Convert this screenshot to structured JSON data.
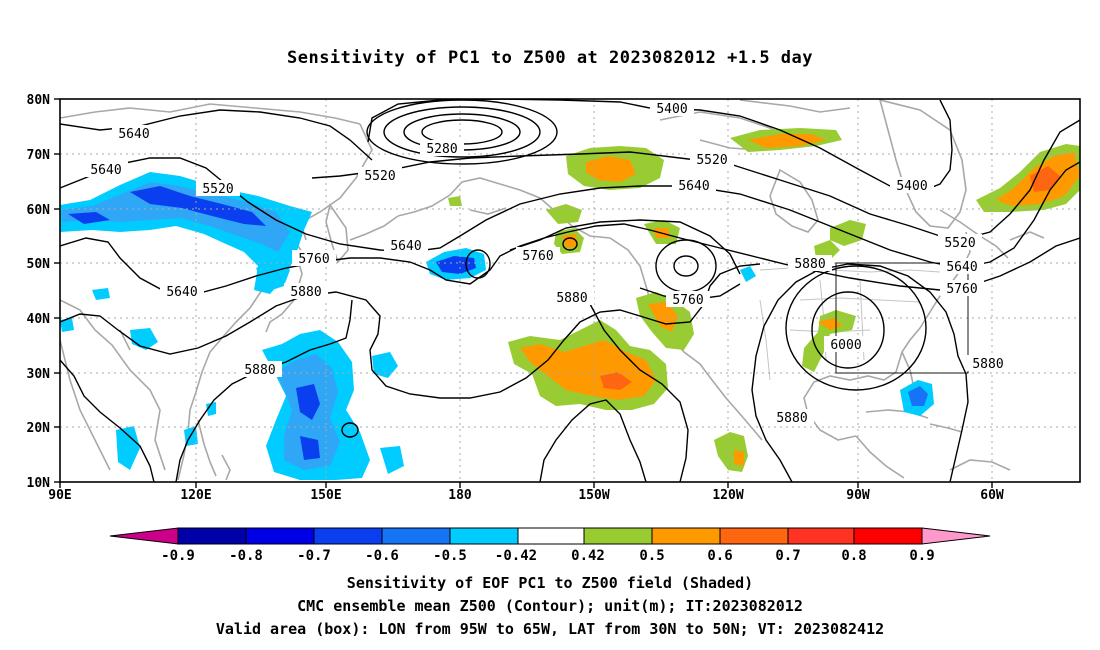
{
  "title": "Sensitivity of PC1 to Z500 at 2023082012 +1.5 day",
  "map": {
    "lat_labels": [
      "80N",
      "70N",
      "60N",
      "50N",
      "40N",
      "30N",
      "20N",
      "10N"
    ],
    "lon_labels": [
      "90E",
      "120E",
      "150E",
      "180",
      "150W",
      "120W",
      "90W",
      "60W"
    ],
    "extent": {
      "lon_min": "90E",
      "lon_max": "50W",
      "lat_min": "10N",
      "lat_max": "80N"
    },
    "contour_labels": [
      {
        "text": "5640",
        "id": "c1"
      },
      {
        "text": "5640",
        "id": "c2"
      },
      {
        "text": "5520",
        "id": "c3"
      },
      {
        "text": "5640",
        "id": "c4"
      },
      {
        "text": "5760",
        "id": "c5"
      },
      {
        "text": "5880",
        "id": "c6"
      },
      {
        "text": "5880",
        "id": "c7"
      },
      {
        "text": "5280",
        "id": "c8"
      },
      {
        "text": "5520",
        "id": "c9"
      },
      {
        "text": "5640",
        "id": "c10"
      },
      {
        "text": "5760",
        "id": "c11"
      },
      {
        "text": "5400",
        "id": "c12"
      },
      {
        "text": "5520",
        "id": "c13"
      },
      {
        "text": "5640",
        "id": "c14"
      },
      {
        "text": "5880",
        "id": "c15"
      },
      {
        "text": "5760",
        "id": "c16"
      },
      {
        "text": "5400",
        "id": "c17"
      },
      {
        "text": "5520",
        "id": "c18"
      },
      {
        "text": "5640",
        "id": "c19"
      },
      {
        "text": "5760",
        "id": "c20"
      },
      {
        "text": "5880",
        "id": "c21"
      },
      {
        "text": "6000",
        "id": "c22"
      },
      {
        "text": "5880",
        "id": "c23"
      },
      {
        "text": "5880",
        "id": "c24"
      }
    ],
    "valid_box": {
      "lon": "95W to 65W",
      "lat": "30N to 50N"
    }
  },
  "colorbar": {
    "labels": [
      "-0.9",
      "-0.8",
      "-0.7",
      "-0.6",
      "-0.5",
      "-0.42",
      "0.42",
      "0.5",
      "0.6",
      "0.7",
      "0.8",
      "0.9"
    ],
    "colors": [
      "#cc0088",
      "#0000a8",
      "#0000e6",
      "#0a3ff0",
      "#1673f5",
      "#2fa6f6",
      "#00ccff",
      "#ffffff",
      "#99cc33",
      "#ff9900",
      "#ff6611",
      "#ff3322",
      "#ff0000",
      "#ff99cc"
    ],
    "pos_fill": [
      "#99cc33",
      "#ff9900",
      "#ff6611",
      "#ff3322"
    ],
    "neg_fill": [
      "#0a3ff0",
      "#1673f5",
      "#2fa6f6",
      "#00ccff"
    ]
  },
  "captions": [
    "Sensitivity of EOF PC1 to Z500 field (Shaded)",
    "CMC ensemble mean Z500 (Contour); unit(m); IT:2023082012",
    "Valid area (box): LON from 95W to 65W, LAT from 30N to 50N; VT: 2023082412"
  ]
}
